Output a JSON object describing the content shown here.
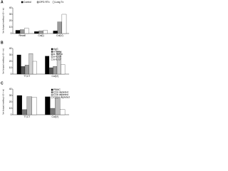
{
  "chart_data": [
    {
      "type": "bar",
      "label": "A",
      "ylabel": "Net footpad swelling (×10⁻⁴ in)",
      "categories": [
        "Recall",
        "Col(I)",
        "Col(V)"
      ],
      "series": [
        {
          "name": "Control",
          "color": "#000000",
          "values": [
            5,
            3,
            4
          ]
        },
        {
          "name": "OPG RTx",
          "color": "#9a9a9a",
          "values": [
            6,
            4,
            18
          ]
        },
        {
          "name": "Lung Tx",
          "color": "#ffffff",
          "values": [
            8,
            5,
            30
          ]
        }
      ],
      "ylim": [
        0,
        40
      ],
      "yticks": [
        0,
        10,
        20,
        30,
        40
      ],
      "legend": "top"
    },
    {
      "type": "bar",
      "label": "B",
      "ylabel": "Net footpad swelling (×10⁻⁴ in)",
      "categories": [
        "TT,CT",
        "Col(V)"
      ],
      "series": [
        {
          "name": "rIgG",
          "color": "#000000",
          "values": [
            30,
            28
          ]
        },
        {
          "name": "α-IFN-γ",
          "color": "#555555",
          "values": [
            12,
            10
          ]
        },
        {
          "name": "α-TNF-α",
          "color": "#9a9a9a",
          "values": [
            14,
            12
          ]
        },
        {
          "name": "α-IL-10",
          "color": "#d0d0d0",
          "values": [
            32,
            35
          ]
        },
        {
          "name": "α-IL-17",
          "color": "#ffffff",
          "values": [
            20,
            15
          ]
        }
      ],
      "ylim": [
        0,
        40
      ],
      "yticks": [
        0,
        10,
        20,
        30,
        40
      ],
      "legend": "upper right"
    },
    {
      "type": "bar",
      "label": "C",
      "ylabel": "Net footpad swelling (×10⁻⁴ in)",
      "categories": [
        "TT,CT",
        "Col(V)"
      ],
      "series": [
        {
          "name": "PBMC",
          "color": "#000000",
          "values": [
            30,
            28
          ]
        },
        {
          "name": "CD4 depleted",
          "color": "#777777",
          "values": [
            8,
            10
          ]
        },
        {
          "name": "CD8 depleted",
          "color": "#bbbbbb",
          "values": [
            28,
            26
          ]
        },
        {
          "name": "CD14 depleted",
          "color": "#ffffff",
          "values": [
            27,
            8
          ]
        }
      ],
      "ylim": [
        0,
        40
      ],
      "yticks": [
        0,
        10,
        20,
        30,
        40
      ],
      "legend": "upper right"
    }
  ]
}
